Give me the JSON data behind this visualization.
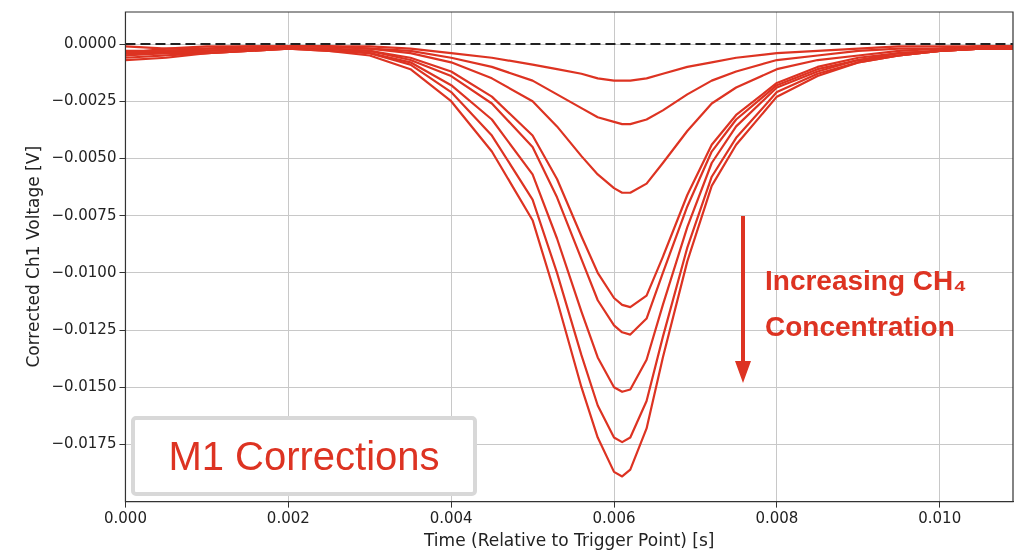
{
  "chart_data": {
    "type": "line",
    "xlabel": "Time (Relative to Trigger Point) [s]",
    "ylabel": "Corrected Ch1 Voltage [V]",
    "x": [
      0,
      0.0005,
      0.001,
      0.0015,
      0.002,
      0.0025,
      0.003,
      0.0035,
      0.004,
      0.0045,
      0.005,
      0.0053,
      0.0056,
      0.0058,
      0.006,
      0.0061,
      0.0062,
      0.0064,
      0.0066,
      0.0069,
      0.0072,
      0.0075,
      0.008,
      0.0085,
      0.009,
      0.0095,
      0.01,
      0.0105,
      0.0109
    ],
    "xlim": [
      0,
      0.0109
    ],
    "xticks": [
      {
        "value": 0,
        "label": "0.000"
      },
      {
        "value": 0.002,
        "label": "0.002"
      },
      {
        "value": 0.004,
        "label": "0.004"
      },
      {
        "value": 0.006,
        "label": "0.006"
      },
      {
        "value": 0.008,
        "label": "0.008"
      },
      {
        "value": 0.01,
        "label": "0.010"
      }
    ],
    "ylim": [
      -0.02,
      0.0014
    ],
    "yticks": [
      {
        "value": 0,
        "label": "0.0000"
      },
      {
        "value": -0.0025,
        "label": "−0.0025"
      },
      {
        "value": -0.005,
        "label": "−0.0050"
      },
      {
        "value": -0.0075,
        "label": "−0.0075"
      },
      {
        "value": -0.01,
        "label": "−0.0100"
      },
      {
        "value": -0.0125,
        "label": "−0.0125"
      },
      {
        "value": -0.015,
        "label": "−0.0150"
      },
      {
        "value": -0.0175,
        "label": "−0.0175"
      }
    ],
    "grid": true,
    "legend": false,
    "marker": "none",
    "line_style": "solid",
    "series": [
      {
        "color": "#dd3322",
        "values": [
          -0.0007,
          -0.0006,
          -0.0004,
          -0.0003,
          -0.0002,
          -0.0003,
          -0.0005,
          -0.0011,
          -0.0025,
          -0.0047,
          -0.0077,
          -0.0112,
          -0.015,
          -0.0172,
          -0.0187,
          -0.0189,
          -0.0186,
          -0.0168,
          -0.0137,
          -0.0095,
          -0.0062,
          -0.0044,
          -0.0023,
          -0.0014,
          -0.0008,
          -0.0005,
          -0.0003,
          -0.0002,
          -0.0002
        ]
      },
      {
        "color": "#dd3322",
        "values": [
          -0.0006,
          -0.0005,
          -0.0004,
          -0.0003,
          -0.0002,
          -0.0003,
          -0.0004,
          -0.0009,
          -0.0021,
          -0.004,
          -0.0068,
          -0.01,
          -0.0136,
          -0.0158,
          -0.0172,
          -0.0174,
          -0.0172,
          -0.0156,
          -0.0128,
          -0.0089,
          -0.0058,
          -0.0041,
          -0.0021,
          -0.0013,
          -0.0008,
          -0.0005,
          -0.0003,
          -0.0002,
          -0.0002
        ]
      },
      {
        "color": "#dd3322",
        "values": [
          -0.0005,
          -0.0004,
          -0.0004,
          -0.0003,
          -0.0002,
          -0.0002,
          -0.0004,
          -0.0008,
          -0.0018,
          -0.0033,
          -0.0057,
          -0.0085,
          -0.0117,
          -0.0137,
          -0.015,
          -0.0152,
          -0.0151,
          -0.0138,
          -0.0114,
          -0.008,
          -0.0052,
          -0.0036,
          -0.0019,
          -0.0012,
          -0.0007,
          -0.0005,
          -0.0003,
          -0.0002,
          -0.0002
        ]
      },
      {
        "color": "#dd3322",
        "values": [
          -0.0004,
          -0.0004,
          -0.0003,
          -0.0002,
          -0.0002,
          -0.0002,
          -0.0003,
          -0.0007,
          -0.0014,
          -0.0026,
          -0.0045,
          -0.0067,
          -0.0094,
          -0.0112,
          -0.0123,
          -0.0126,
          -0.0127,
          -0.012,
          -0.01,
          -0.0071,
          -0.0047,
          -0.0033,
          -0.0018,
          -0.0011,
          -0.0007,
          -0.0004,
          -0.0003,
          -0.0002,
          -0.0002
        ]
      },
      {
        "color": "#dd3322",
        "values": [
          -0.0003,
          -0.0003,
          -0.0003,
          -0.0002,
          -0.0002,
          -0.0002,
          -0.0003,
          -0.0006,
          -0.0012,
          -0.0023,
          -0.004,
          -0.0059,
          -0.0084,
          -0.01,
          -0.0111,
          -0.0114,
          -0.0115,
          -0.011,
          -0.0093,
          -0.0066,
          -0.0044,
          -0.0031,
          -0.0017,
          -0.001,
          -0.0006,
          -0.0004,
          -0.0003,
          -0.0002,
          -0.0002
        ]
      },
      {
        "color": "#dd3322",
        "values": [
          -0.0005,
          -0.0003,
          -0.0002,
          -0.0002,
          -0.0001,
          -0.0001,
          -0.0002,
          -0.0004,
          -0.0008,
          -0.0015,
          -0.0025,
          -0.0036,
          -0.0049,
          -0.0057,
          -0.0063,
          -0.0065,
          -0.0065,
          -0.0061,
          -0.0052,
          -0.0038,
          -0.0026,
          -0.0019,
          -0.0011,
          -0.0007,
          -0.0005,
          -0.0003,
          -0.0002,
          -0.0001,
          -0.0001
        ]
      },
      {
        "color": "#dd3322",
        "values": [
          -0.0004,
          -0.0002,
          -0.0002,
          -0.0001,
          -0.0001,
          -0.0001,
          -0.0002,
          -0.0003,
          -0.0006,
          -0.001,
          -0.0016,
          -0.0022,
          -0.0028,
          -0.0032,
          -0.0034,
          -0.0035,
          -0.0035,
          -0.0033,
          -0.0029,
          -0.0022,
          -0.0016,
          -0.0012,
          -0.0007,
          -0.0005,
          -0.0003,
          -0.0002,
          -0.0002,
          -0.0001,
          -0.0001
        ]
      },
      {
        "color": "#dd3322",
        "values": [
          -0.0001,
          -0.0002,
          -0.0001,
          -0.0001,
          -0.0001,
          -0.0001,
          -0.0001,
          -0.0002,
          -0.0004,
          -0.0006,
          -0.0009,
          -0.0011,
          -0.0013,
          -0.0015,
          -0.0016,
          -0.0016,
          -0.0016,
          -0.0015,
          -0.0013,
          -0.001,
          -0.0008,
          -0.0006,
          -0.0004,
          -0.0003,
          -0.0002,
          -0.0001,
          -0.0001,
          -0.0001,
          -0.0001
        ]
      }
    ],
    "ref_lines": [
      {
        "axis": "y",
        "value": 0,
        "color": "#222222",
        "line_style": "dashed"
      }
    ],
    "annotations": [
      "Increasing CH₄ Concentration",
      "M1 Corrections"
    ]
  }
}
